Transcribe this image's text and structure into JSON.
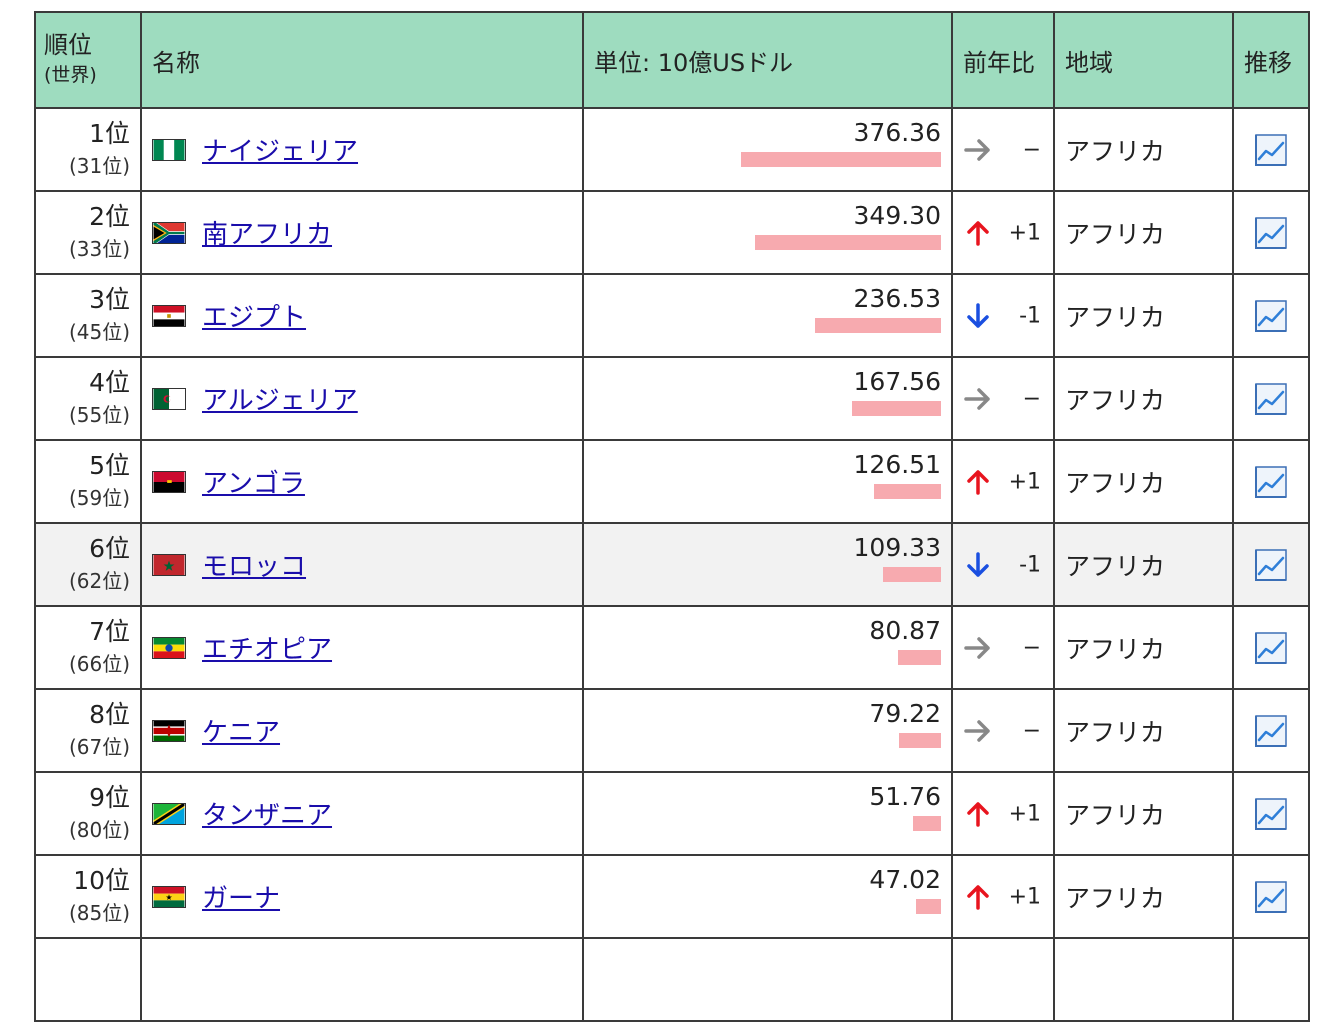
{
  "header": {
    "rank": "順位",
    "rank_sub": "(世界)",
    "name": "名称",
    "unit": "単位: 10億USドル",
    "change": "前年比",
    "region": "地域",
    "trend": "推移"
  },
  "colors": {
    "header_bg": "#9edcbf",
    "bar": "#f7aaaf",
    "up": "#e8141e",
    "down": "#1a4fe0",
    "same": "#888888",
    "link": "#1a0dab"
  },
  "max_value": 376.36,
  "rows": [
    {
      "pos": "1位",
      "world": "(31位)",
      "name": "ナイジェリア",
      "flag": "nigeria-flag-icon",
      "value": 376.36,
      "value_text": "376.36",
      "trend": "same",
      "delta": "−",
      "region": "アフリカ"
    },
    {
      "pos": "2位",
      "world": "(33位)",
      "name": "南アフリカ",
      "flag": "south-africa-flag-icon",
      "value": 349.3,
      "value_text": "349.30",
      "trend": "up",
      "delta": "+1",
      "region": "アフリカ"
    },
    {
      "pos": "3位",
      "world": "(45位)",
      "name": "エジプト",
      "flag": "egypt-flag-icon",
      "value": 236.53,
      "value_text": "236.53",
      "trend": "down",
      "delta": "-1",
      "region": "アフリカ"
    },
    {
      "pos": "4位",
      "world": "(55位)",
      "name": "アルジェリア",
      "flag": "algeria-flag-icon",
      "value": 167.56,
      "value_text": "167.56",
      "trend": "same",
      "delta": "−",
      "region": "アフリカ"
    },
    {
      "pos": "5位",
      "world": "(59位)",
      "name": "アンゴラ",
      "flag": "angola-flag-icon",
      "value": 126.51,
      "value_text": "126.51",
      "trend": "up",
      "delta": "+1",
      "region": "アフリカ"
    },
    {
      "pos": "6位",
      "world": "(62位)",
      "name": "モロッコ",
      "flag": "morocco-flag-icon",
      "value": 109.33,
      "value_text": "109.33",
      "trend": "down",
      "delta": "-1",
      "region": "アフリカ",
      "highlight": true
    },
    {
      "pos": "7位",
      "world": "(66位)",
      "name": "エチオピア",
      "flag": "ethiopia-flag-icon",
      "value": 80.87,
      "value_text": "80.87",
      "trend": "same",
      "delta": "−",
      "region": "アフリカ"
    },
    {
      "pos": "8位",
      "world": "(67位)",
      "name": "ケニア",
      "flag": "kenya-flag-icon",
      "value": 79.22,
      "value_text": "79.22",
      "trend": "same",
      "delta": "−",
      "region": "アフリカ"
    },
    {
      "pos": "9位",
      "world": "(80位)",
      "name": "タンザニア",
      "flag": "tanzania-flag-icon",
      "value": 51.76,
      "value_text": "51.76",
      "trend": "up",
      "delta": "+1",
      "region": "アフリカ"
    },
    {
      "pos": "10位",
      "world": "(85位)",
      "name": "ガーナ",
      "flag": "ghana-flag-icon",
      "value": 47.02,
      "value_text": "47.02",
      "trend": "up",
      "delta": "+1",
      "region": "アフリカ"
    }
  ]
}
